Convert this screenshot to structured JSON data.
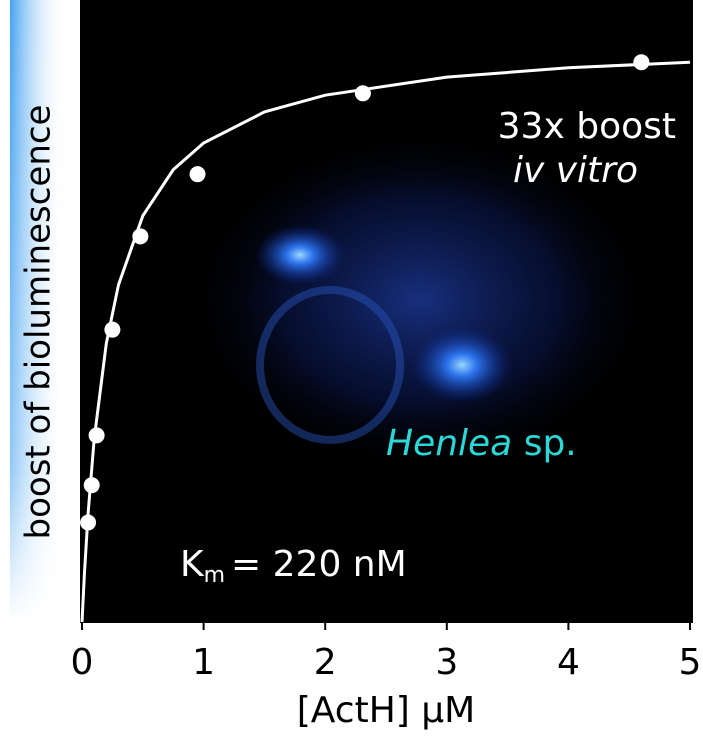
{
  "chart_data": {
    "type": "scatter",
    "x_label": "[ActH] μM",
    "y_label": "boost of bioluminescence",
    "xlim": [
      0,
      5
    ],
    "xticks": [
      0,
      1,
      2,
      3,
      4,
      5
    ],
    "ylim": [
      0,
      1
    ],
    "series": [
      {
        "kind": "points",
        "color": "#ffffff",
        "x": [
          0.05,
          0.08,
          0.12,
          0.25,
          0.48,
          0.95,
          2.31,
          4.6
        ],
        "values": [
          0.16,
          0.22,
          0.3,
          0.47,
          0.62,
          0.72,
          0.85,
          0.9
        ]
      },
      {
        "kind": "line",
        "color": "#ffffff",
        "x": [
          0,
          0.02,
          0.05,
          0.1,
          0.2,
          0.3,
          0.5,
          0.75,
          1,
          1.5,
          2,
          3,
          4,
          5
        ],
        "values": [
          0,
          0.078,
          0.174,
          0.294,
          0.448,
          0.542,
          0.653,
          0.727,
          0.77,
          0.82,
          0.847,
          0.876,
          0.891,
          0.9
        ]
      }
    ],
    "annotations": {
      "boost": "33x boost",
      "condition": "iv vitro",
      "species": {
        "italic": "Henlea",
        "text": "sp."
      },
      "km": {
        "symbol": "K",
        "subscript": "m",
        "text": "= 220 nM"
      }
    }
  }
}
